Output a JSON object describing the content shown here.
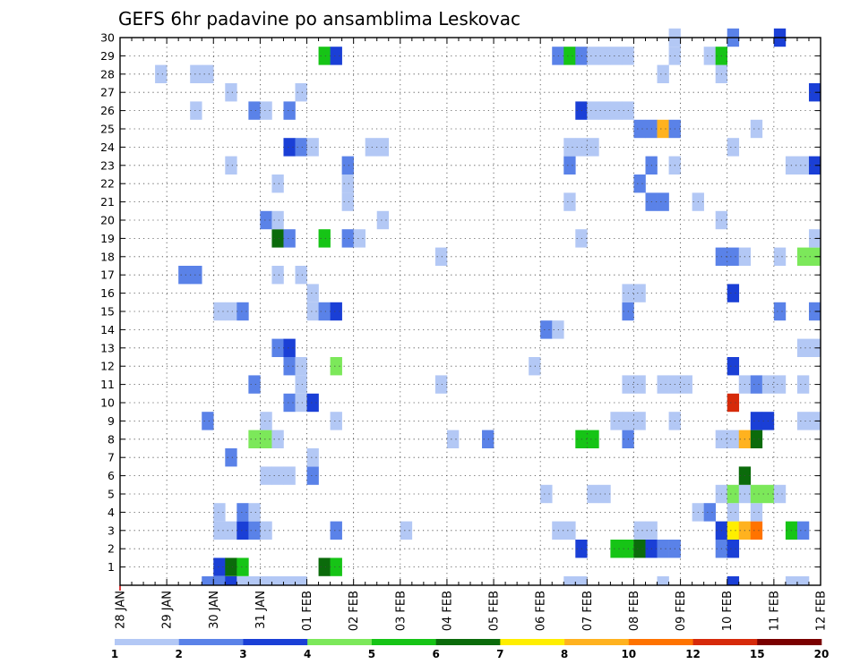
{
  "chart_data": {
    "type": "heatmap",
    "title": "GEFS 6hr padavine po ansamblima Leskovac",
    "y_categories": [
      "1",
      "2",
      "3",
      "4",
      "5",
      "6",
      "7",
      "8",
      "9",
      "10",
      "11",
      "12",
      "13",
      "14",
      "15",
      "16",
      "17",
      "18",
      "19",
      "20",
      "21",
      "22",
      "23",
      "24",
      "25",
      "26",
      "27",
      "28",
      "29",
      "30"
    ],
    "x_tick_labels": [
      "28 JAN",
      "29 JAN",
      "30 JAN",
      "31 JAN",
      "01 FEB",
      "02 FEB",
      "03 FEB",
      "04 FEB",
      "05 FEB",
      "06 FEB",
      "07 FEB",
      "08 FEB",
      "09 FEB",
      "10 FEB",
      "11 FEB",
      "12 FEB"
    ],
    "x_steps": 60,
    "steps_per_day": 4,
    "grid": "dotted",
    "legend": {
      "placement": "bottom",
      "labels": [
        "1",
        "2",
        "3",
        "4",
        "5",
        "6",
        "7",
        "8",
        "10",
        "12",
        "15",
        "20"
      ],
      "colors": [
        "#b3c8f5",
        "#5a82e8",
        "#1a3fd6",
        "#7ce85a",
        "#16c416",
        "#0b6b0b",
        "#ffee00",
        "#ffb21f",
        "#ff7300",
        "#d62a0a",
        "#7a0000"
      ]
    },
    "cells": [
      [
        1,
        8,
        3
      ],
      [
        1,
        9,
        6
      ],
      [
        1,
        10,
        5
      ],
      [
        1,
        17,
        6
      ],
      [
        1,
        18,
        5
      ],
      [
        2,
        39,
        3
      ],
      [
        2,
        42,
        5
      ],
      [
        2,
        43,
        5
      ],
      [
        2,
        44,
        6
      ],
      [
        2,
        45,
        3
      ],
      [
        2,
        46,
        2
      ],
      [
        2,
        47,
        2
      ],
      [
        2,
        51,
        2
      ],
      [
        2,
        52,
        3
      ],
      [
        3,
        8,
        1
      ],
      [
        3,
        9,
        1
      ],
      [
        3,
        10,
        3
      ],
      [
        3,
        11,
        2
      ],
      [
        3,
        12,
        1
      ],
      [
        3,
        18,
        2
      ],
      [
        3,
        24,
        1
      ],
      [
        3,
        37,
        1
      ],
      [
        3,
        38,
        1
      ],
      [
        3,
        44,
        1
      ],
      [
        3,
        45,
        1
      ],
      [
        3,
        51,
        3
      ],
      [
        3,
        52,
        7
      ],
      [
        3,
        53,
        8
      ],
      [
        3,
        54,
        9
      ],
      [
        3,
        57,
        5
      ],
      [
        3,
        58,
        2
      ],
      [
        4,
        8,
        1
      ],
      [
        4,
        10,
        2
      ],
      [
        4,
        11,
        1
      ],
      [
        4,
        49,
        1
      ],
      [
        4,
        50,
        2
      ],
      [
        4,
        52,
        1
      ],
      [
        4,
        54,
        1
      ],
      [
        5,
        36,
        1
      ],
      [
        5,
        40,
        1
      ],
      [
        5,
        41,
        1
      ],
      [
        5,
        51,
        1
      ],
      [
        5,
        52,
        4
      ],
      [
        5,
        53,
        1
      ],
      [
        5,
        54,
        4
      ],
      [
        5,
        55,
        4
      ],
      [
        5,
        56,
        1
      ],
      [
        6,
        12,
        1
      ],
      [
        6,
        13,
        1
      ],
      [
        6,
        14,
        1
      ],
      [
        6,
        16,
        2
      ],
      [
        6,
        53,
        6
      ],
      [
        7,
        9,
        2
      ],
      [
        7,
        16,
        1
      ],
      [
        8,
        11,
        4
      ],
      [
        8,
        12,
        4
      ],
      [
        8,
        13,
        1
      ],
      [
        8,
        28,
        1
      ],
      [
        8,
        31,
        2
      ],
      [
        8,
        39,
        5
      ],
      [
        8,
        40,
        5
      ],
      [
        8,
        43,
        2
      ],
      [
        8,
        51,
        1
      ],
      [
        8,
        52,
        1
      ],
      [
        8,
        53,
        8
      ],
      [
        8,
        54,
        6
      ],
      [
        9,
        7,
        2
      ],
      [
        9,
        12,
        1
      ],
      [
        9,
        18,
        1
      ],
      [
        9,
        42,
        1
      ],
      [
        9,
        43,
        1
      ],
      [
        9,
        44,
        1
      ],
      [
        9,
        47,
        1
      ],
      [
        9,
        54,
        3
      ],
      [
        9,
        55,
        3
      ],
      [
        9,
        58,
        1
      ],
      [
        9,
        59,
        1
      ],
      [
        10,
        14,
        2
      ],
      [
        10,
        15,
        1
      ],
      [
        10,
        16,
        3
      ],
      [
        10,
        52,
        10
      ],
      [
        11,
        11,
        2
      ],
      [
        11,
        15,
        1
      ],
      [
        11,
        27,
        1
      ],
      [
        11,
        43,
        1
      ],
      [
        11,
        44,
        1
      ],
      [
        11,
        46,
        1
      ],
      [
        11,
        47,
        1
      ],
      [
        11,
        48,
        1
      ],
      [
        11,
        53,
        1
      ],
      [
        11,
        54,
        2
      ],
      [
        11,
        55,
        1
      ],
      [
        11,
        56,
        1
      ],
      [
        11,
        58,
        1
      ],
      [
        12,
        14,
        2
      ],
      [
        12,
        15,
        1
      ],
      [
        12,
        18,
        4
      ],
      [
        12,
        35,
        1
      ],
      [
        12,
        52,
        3
      ],
      [
        13,
        13,
        2
      ],
      [
        13,
        14,
        3
      ],
      [
        13,
        58,
        1
      ],
      [
        13,
        59,
        1
      ],
      [
        14,
        36,
        2
      ],
      [
        14,
        37,
        1
      ],
      [
        15,
        8,
        1
      ],
      [
        15,
        9,
        1
      ],
      [
        15,
        10,
        2
      ],
      [
        15,
        16,
        1
      ],
      [
        15,
        17,
        2
      ],
      [
        15,
        18,
        3
      ],
      [
        15,
        43,
        2
      ],
      [
        15,
        56,
        2
      ],
      [
        15,
        59,
        2
      ],
      [
        16,
        16,
        1
      ],
      [
        16,
        43,
        1
      ],
      [
        16,
        44,
        1
      ],
      [
        16,
        52,
        3
      ],
      [
        17,
        5,
        2
      ],
      [
        17,
        6,
        2
      ],
      [
        17,
        13,
        1
      ],
      [
        17,
        15,
        1
      ],
      [
        18,
        27,
        1
      ],
      [
        18,
        51,
        2
      ],
      [
        18,
        52,
        2
      ],
      [
        18,
        53,
        1
      ],
      [
        18,
        56,
        1
      ],
      [
        18,
        58,
        4
      ],
      [
        18,
        59,
        4
      ],
      [
        19,
        13,
        6
      ],
      [
        19,
        14,
        2
      ],
      [
        19,
        17,
        5
      ],
      [
        19,
        19,
        2
      ],
      [
        19,
        20,
        1
      ],
      [
        19,
        39,
        1
      ],
      [
        19,
        59,
        1
      ],
      [
        20,
        12,
        2
      ],
      [
        20,
        13,
        1
      ],
      [
        20,
        22,
        1
      ],
      [
        20,
        51,
        1
      ],
      [
        21,
        19,
        1
      ],
      [
        21,
        38,
        1
      ],
      [
        21,
        45,
        2
      ],
      [
        21,
        46,
        2
      ],
      [
        21,
        49,
        1
      ],
      [
        22,
        13,
        1
      ],
      [
        22,
        19,
        1
      ],
      [
        22,
        44,
        2
      ],
      [
        23,
        9,
        1
      ],
      [
        23,
        19,
        2
      ],
      [
        23,
        38,
        2
      ],
      [
        23,
        45,
        2
      ],
      [
        23,
        47,
        1
      ],
      [
        23,
        57,
        1
      ],
      [
        23,
        58,
        1
      ],
      [
        23,
        59,
        3
      ],
      [
        24,
        14,
        3
      ],
      [
        24,
        15,
        2
      ],
      [
        24,
        16,
        1
      ],
      [
        24,
        21,
        1
      ],
      [
        24,
        22,
        1
      ],
      [
        24,
        38,
        1
      ],
      [
        24,
        39,
        1
      ],
      [
        24,
        40,
        1
      ],
      [
        24,
        52,
        1
      ],
      [
        25,
        44,
        2
      ],
      [
        25,
        45,
        2
      ],
      [
        25,
        46,
        8
      ],
      [
        25,
        47,
        2
      ],
      [
        25,
        54,
        1
      ],
      [
        26,
        6,
        1
      ],
      [
        26,
        11,
        2
      ],
      [
        26,
        12,
        1
      ],
      [
        26,
        14,
        2
      ],
      [
        26,
        39,
        3
      ],
      [
        26,
        40,
        1
      ],
      [
        26,
        41,
        1
      ],
      [
        26,
        42,
        1
      ],
      [
        26,
        43,
        1
      ],
      [
        27,
        9,
        1
      ],
      [
        27,
        15,
        1
      ],
      [
        27,
        59,
        3
      ],
      [
        28,
        3,
        1
      ],
      [
        28,
        6,
        1
      ],
      [
        28,
        7,
        1
      ],
      [
        28,
        46,
        1
      ],
      [
        28,
        51,
        1
      ],
      [
        29,
        17,
        5
      ],
      [
        29,
        18,
        3
      ],
      [
        29,
        37,
        2
      ],
      [
        29,
        38,
        5
      ],
      [
        29,
        39,
        2
      ],
      [
        29,
        40,
        1
      ],
      [
        29,
        41,
        1
      ],
      [
        29,
        42,
        1
      ],
      [
        29,
        43,
        1
      ],
      [
        29,
        47,
        1
      ],
      [
        29,
        50,
        1
      ],
      [
        29,
        51,
        5
      ],
      [
        30,
        47,
        1
      ],
      [
        30,
        52,
        2
      ],
      [
        30,
        56,
        3
      ]
    ],
    "bottom_strip": [
      [
        7,
        2
      ],
      [
        8,
        2
      ],
      [
        9,
        3
      ],
      [
        10,
        1
      ],
      [
        11,
        1
      ],
      [
        12,
        1
      ],
      [
        13,
        1
      ],
      [
        14,
        1
      ],
      [
        15,
        1
      ],
      [
        38,
        1
      ],
      [
        39,
        1
      ],
      [
        46,
        1
      ],
      [
        52,
        3
      ],
      [
        57,
        1
      ],
      [
        58,
        1
      ]
    ]
  }
}
